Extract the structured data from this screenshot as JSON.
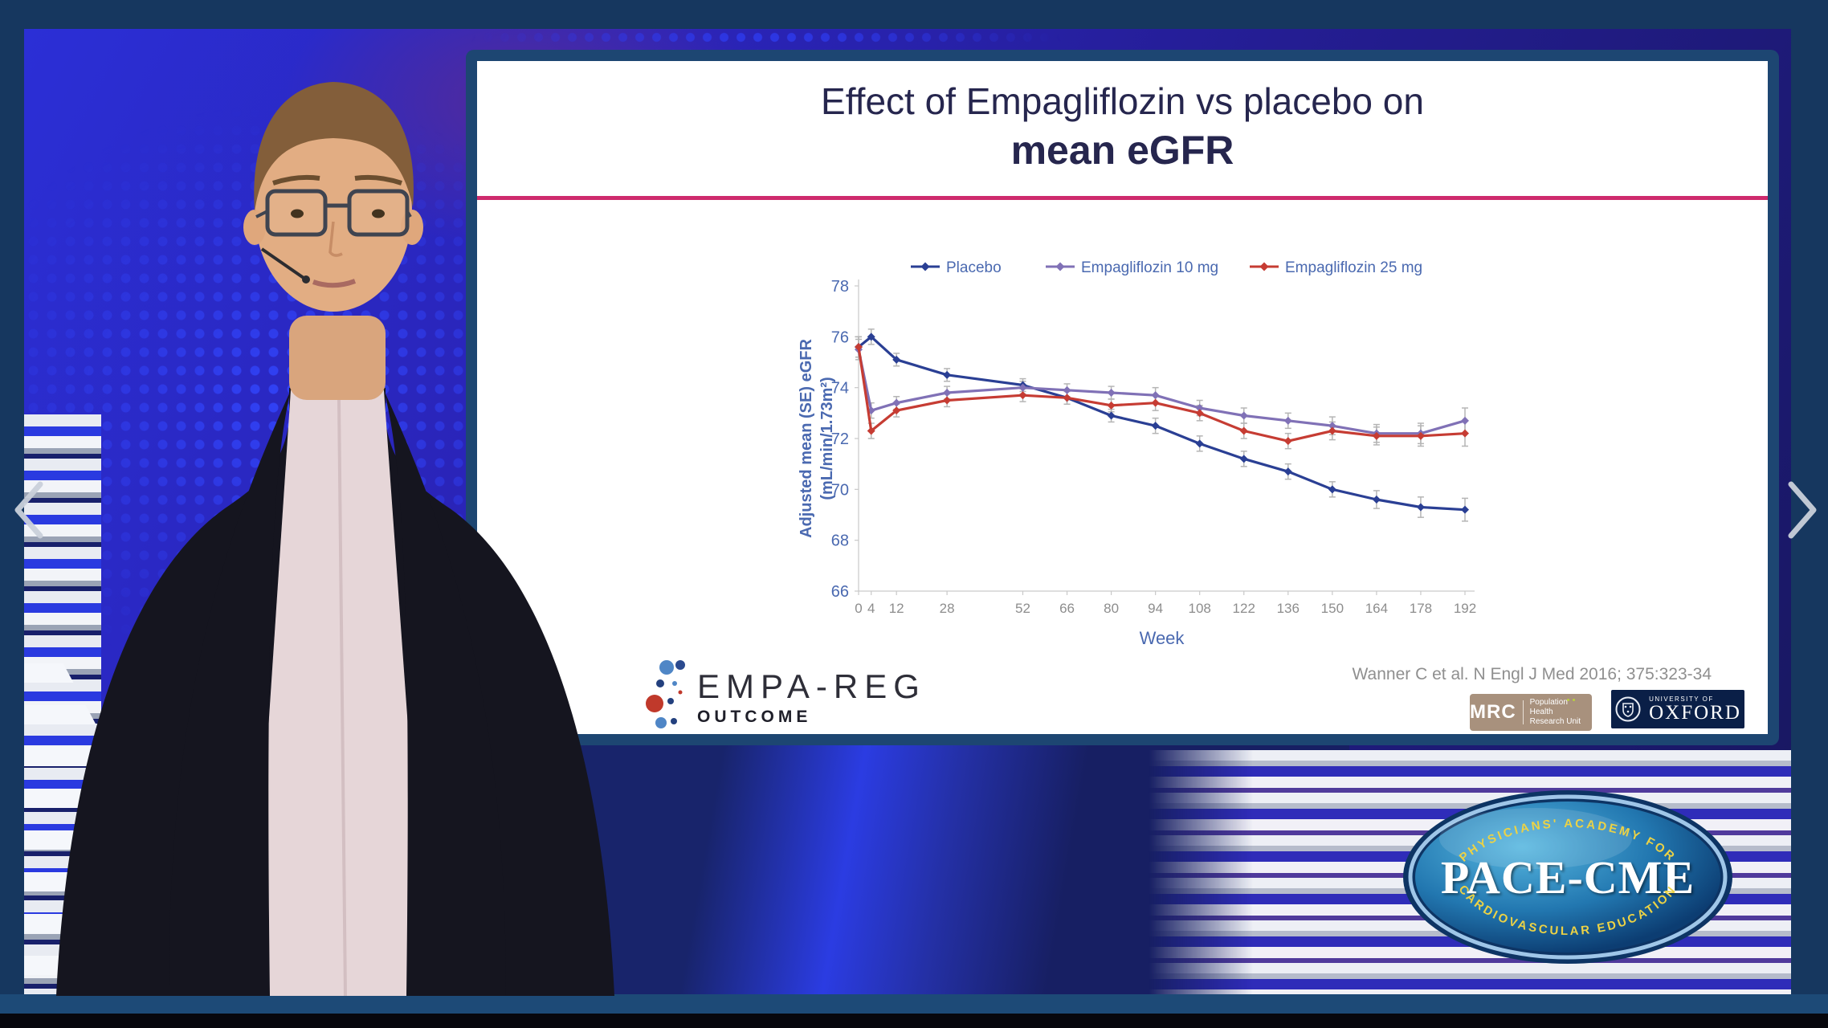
{
  "slide": {
    "title_line1": "Effect of Empagliflozin vs placebo on",
    "title_line2": "mean eGFR",
    "citation": "Wanner C et al. N Engl J Med 2016; 375:323-34",
    "empareg_logo": {
      "line1": "EMPA-REG",
      "line2": "OUTCOME"
    },
    "mrc_logo": {
      "abbr": "MRC",
      "line1": "Population Health",
      "line2": "Research Unit"
    },
    "oxford_logo": {
      "line1": "UNIVERSITY OF",
      "line2": "OXFORD"
    }
  },
  "pace_logo": {
    "top_arc": "PHYSICIANS' ACADEMY FOR",
    "name": "PACE-CME",
    "bottom_arc": "CARDIOVASCULAR EDUCATION"
  },
  "chart_data": {
    "type": "line",
    "title": "",
    "xlabel": "Week",
    "ylabel_line1": "Adjusted mean (SE) eGFR",
    "ylabel_line2": "(mL/min/1.73m²)",
    "x": [
      0,
      4,
      12,
      28,
      52,
      66,
      80,
      94,
      108,
      122,
      136,
      150,
      164,
      178,
      192
    ],
    "xlim": [
      0,
      192
    ],
    "ylim": [
      66,
      78
    ],
    "ytick_step": 2,
    "grid": false,
    "legend_position": "top",
    "legend_text_color": "#4a69b0",
    "axis_label_color": "#4a69b0",
    "xtick_color": "#8d8d8d",
    "axis_line_color": "#c9c9c9",
    "errorbar_color": "#b5b5b5",
    "series": [
      {
        "name": "Placebo",
        "color": "#2a3f94",
        "values": [
          75.6,
          76.0,
          75.1,
          74.5,
          74.1,
          73.6,
          72.9,
          72.5,
          71.8,
          71.2,
          70.7,
          70.0,
          69.6,
          69.3,
          69.2
        ],
        "se": [
          0.4,
          0.3,
          0.25,
          0.25,
          0.25,
          0.25,
          0.25,
          0.3,
          0.3,
          0.3,
          0.3,
          0.3,
          0.35,
          0.4,
          0.45
        ]
      },
      {
        "name": "Empagliflozin 10 mg",
        "color": "#8071b6",
        "values": [
          75.5,
          73.1,
          73.4,
          73.8,
          74.0,
          73.9,
          73.8,
          73.7,
          73.2,
          72.9,
          72.7,
          72.5,
          72.2,
          72.2,
          72.7
        ],
        "se": [
          0.4,
          0.3,
          0.25,
          0.25,
          0.25,
          0.25,
          0.25,
          0.3,
          0.3,
          0.3,
          0.3,
          0.35,
          0.35,
          0.4,
          0.5
        ]
      },
      {
        "name": "Empagliflozin 25 mg",
        "color": "#c63c33",
        "values": [
          75.6,
          72.3,
          73.1,
          73.5,
          73.7,
          73.6,
          73.3,
          73.4,
          73.0,
          72.3,
          71.9,
          72.3,
          72.1,
          72.1,
          72.2
        ],
        "se": [
          0.4,
          0.3,
          0.25,
          0.25,
          0.25,
          0.25,
          0.25,
          0.3,
          0.3,
          0.3,
          0.3,
          0.35,
          0.35,
          0.4,
          0.5
        ]
      }
    ]
  },
  "colors": {
    "slide_border": "#1d4672",
    "divider_pink": "#ce2a6d",
    "title_text": "#26264e",
    "chevron": "#c9d0da"
  }
}
